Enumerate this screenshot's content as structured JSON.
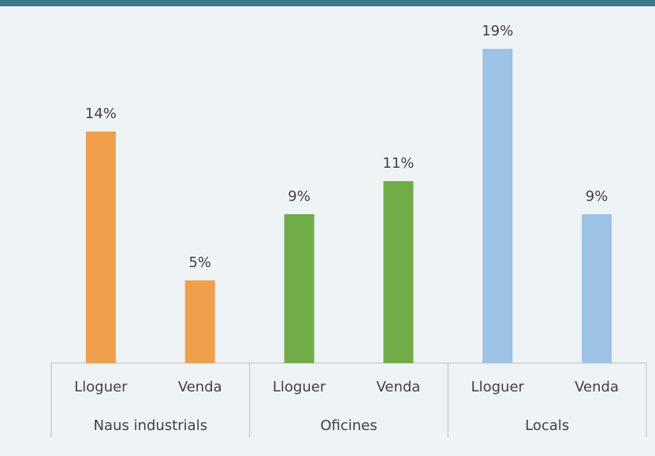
{
  "chart_data": {
    "type": "bar",
    "categories": [
      "Lloguer",
      "Venda",
      "Lloguer",
      "Venda",
      "Lloguer",
      "Venda"
    ],
    "group_labels": [
      "Naus industrials",
      "Oficines",
      "Locals"
    ],
    "values": [
      14,
      5,
      9,
      11,
      19,
      9
    ],
    "value_labels": [
      "14%",
      "5%",
      "9%",
      "11%",
      "19%",
      "9%"
    ],
    "colors": [
      "#f0a04b",
      "#f0a04b",
      "#70ad47",
      "#70ad47",
      "#9dc3e6",
      "#9dc3e6"
    ]
  }
}
